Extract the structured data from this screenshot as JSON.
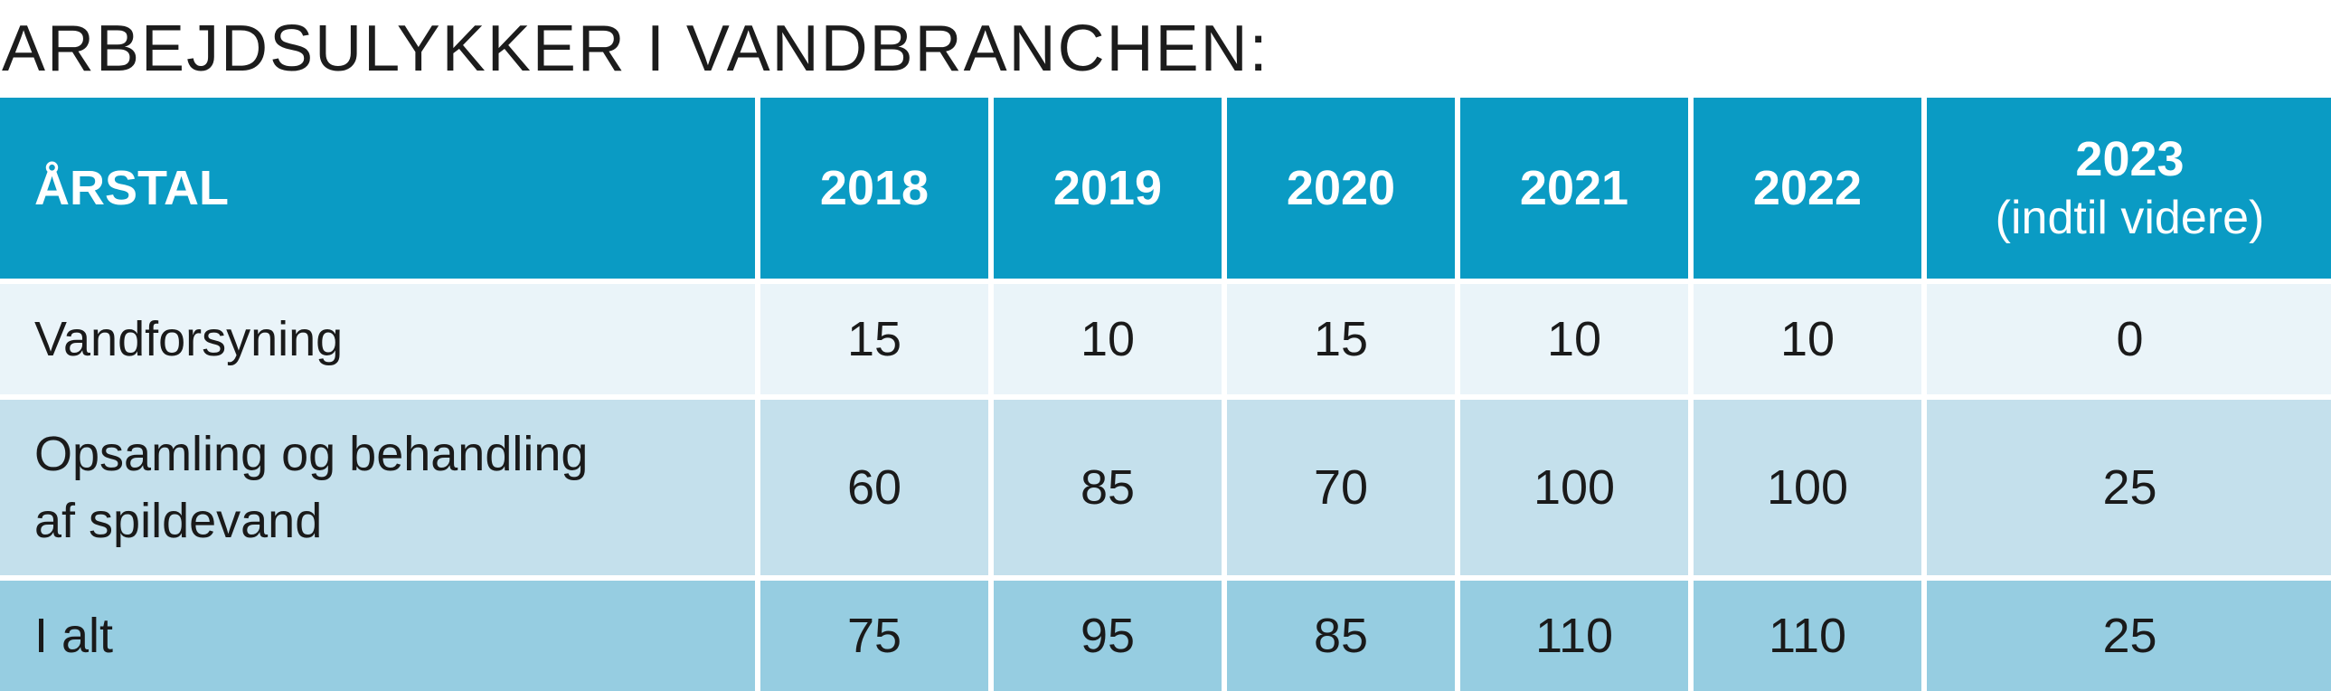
{
  "title": "ARBEJDSULYKKER I VANDBRANCHEN:",
  "table": {
    "header": {
      "label": "ÅRSTAL",
      "years": [
        "2018",
        "2019",
        "2020",
        "2021",
        "2022",
        "2023"
      ],
      "last_year_note": "(indtil videre)"
    },
    "rows": [
      {
        "label": "Vandforsyning",
        "values": [
          "15",
          "10",
          "15",
          "10",
          "10",
          "0"
        ]
      },
      {
        "label_line1": "Opsamling og behandling",
        "label_line2": "af spildevand",
        "values": [
          "60",
          "85",
          "70",
          "100",
          "100",
          "25"
        ]
      },
      {
        "label": "I alt",
        "values": [
          "75",
          "95",
          "85",
          "110",
          "110",
          "25"
        ]
      }
    ]
  },
  "colors": {
    "header_bg": "#0a9bc4",
    "row1_bg": "#eaf4f9",
    "row2_bg": "#c4e0ec",
    "row3_bg": "#96cde1"
  }
}
